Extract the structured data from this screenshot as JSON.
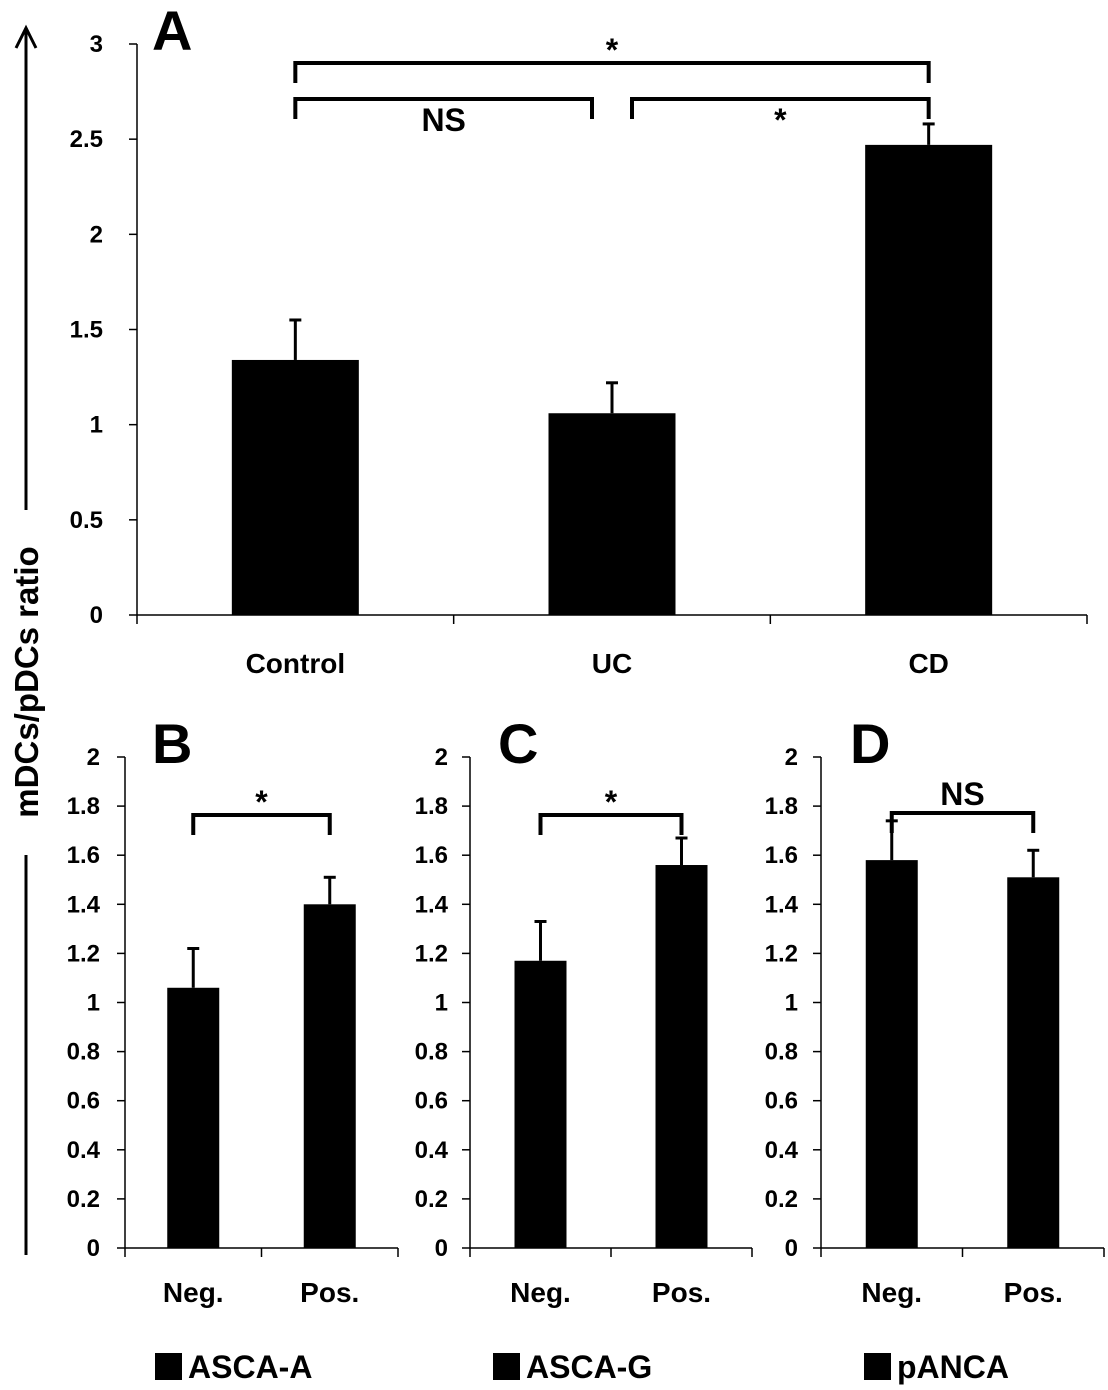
{
  "figure": {
    "ylabel": "mDCs/pDCs ratio",
    "panel_letters": [
      "A",
      "B",
      "C",
      "D"
    ],
    "legend": [
      {
        "label": "ASCA-A",
        "color": "#000000"
      },
      {
        "label": "ASCA-G",
        "color": "#000000"
      },
      {
        "label": "pANCA",
        "color": "#000000"
      }
    ]
  },
  "chart_data": [
    {
      "type": "bar",
      "panel": "A",
      "categories": [
        "Control",
        "UC",
        "CD"
      ],
      "values": [
        1.34,
        1.06,
        2.47
      ],
      "errors": [
        0.21,
        0.16,
        0.11
      ],
      "ylim": [
        0,
        3
      ],
      "yticks": [
        0,
        0.5,
        1,
        1.5,
        2,
        2.5,
        3
      ],
      "ytick_labels": [
        "0",
        "0.5",
        "1",
        "1.5",
        "2",
        "2.5",
        "3"
      ],
      "color": "#000000",
      "significance": [
        {
          "from": 0,
          "to": 1,
          "label": "NS"
        },
        {
          "from": 1,
          "to": 2,
          "label": "*"
        },
        {
          "from": 0,
          "to": 2,
          "label": "*"
        }
      ]
    },
    {
      "type": "bar",
      "panel": "B",
      "categories": [
        "Neg.",
        "Pos."
      ],
      "values": [
        1.06,
        1.4
      ],
      "errors": [
        0.16,
        0.11
      ],
      "ylim": [
        0,
        2
      ],
      "yticks": [
        0,
        0.2,
        0.4,
        0.6,
        0.8,
        1,
        1.2,
        1.4,
        1.6,
        1.8,
        2
      ],
      "ytick_labels": [
        "0",
        "0.2",
        "0.4",
        "0.6",
        "0.8",
        "1",
        "1.2",
        "1.4",
        "1.6",
        "1.8",
        "2"
      ],
      "color": "#000000",
      "legend_label": "ASCA-A",
      "significance": [
        {
          "from": 0,
          "to": 1,
          "label": "*"
        }
      ]
    },
    {
      "type": "bar",
      "panel": "C",
      "categories": [
        "Neg.",
        "Pos."
      ],
      "values": [
        1.17,
        1.56
      ],
      "errors": [
        0.16,
        0.11
      ],
      "ylim": [
        0,
        2
      ],
      "yticks": [
        0,
        0.2,
        0.4,
        0.6,
        0.8,
        1,
        1.2,
        1.4,
        1.6,
        1.8,
        2
      ],
      "ytick_labels": [
        "0",
        "0.2",
        "0.4",
        "0.6",
        "0.8",
        "1",
        "1.2",
        "1.4",
        "1.6",
        "1.8",
        "2"
      ],
      "color": "#000000",
      "legend_label": "ASCA-G",
      "significance": [
        {
          "from": 0,
          "to": 1,
          "label": "*"
        }
      ]
    },
    {
      "type": "bar",
      "panel": "D",
      "categories": [
        "Neg.",
        "Pos."
      ],
      "values": [
        1.58,
        1.51
      ],
      "errors": [
        0.16,
        0.11
      ],
      "ylim": [
        0,
        2
      ],
      "yticks": [
        0,
        0.2,
        0.4,
        0.6,
        0.8,
        1,
        1.2,
        1.4,
        1.6,
        1.8,
        2
      ],
      "ytick_labels": [
        "0",
        "0.2",
        "0.4",
        "0.6",
        "0.8",
        "1",
        "1.2",
        "1.4",
        "1.6",
        "1.8",
        "2"
      ],
      "color": "#000000",
      "legend_label": "pANCA",
      "significance": [
        {
          "from": 0,
          "to": 1,
          "label": "NS"
        }
      ]
    }
  ]
}
